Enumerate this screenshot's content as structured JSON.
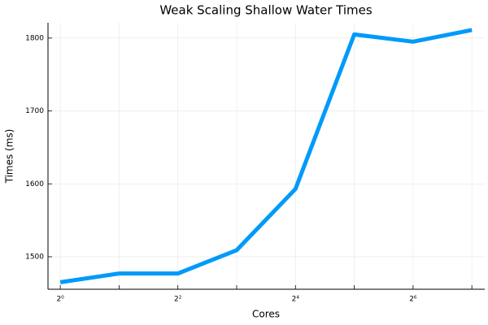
{
  "chart_data": {
    "type": "line",
    "title": "Weak Scaling Shallow Water Times",
    "xlabel": "Cores",
    "ylabel": "Times (ms)",
    "x": [
      1,
      2,
      4,
      8,
      16,
      32,
      64,
      128
    ],
    "series": [
      {
        "name": "y1",
        "color": "#009af9",
        "values": [
          1465,
          1477,
          1477,
          1509,
          1593,
          1805,
          1795,
          1811
        ]
      }
    ],
    "xlog_base": 2,
    "xlim": [
      0.865,
      149
    ],
    "xticks": [
      {
        "value": 1,
        "label": "2⁰"
      },
      {
        "value": 4,
        "label": "2²"
      },
      {
        "value": 16,
        "label": "2⁴"
      },
      {
        "value": 64,
        "label": "2⁶"
      }
    ],
    "xminor_ticks": [
      2,
      8,
      32,
      128
    ],
    "ylim": [
      1455.4,
      1821
    ],
    "yticks": [
      1500,
      1600,
      1700,
      1800
    ],
    "grid": true,
    "legend": false
  }
}
